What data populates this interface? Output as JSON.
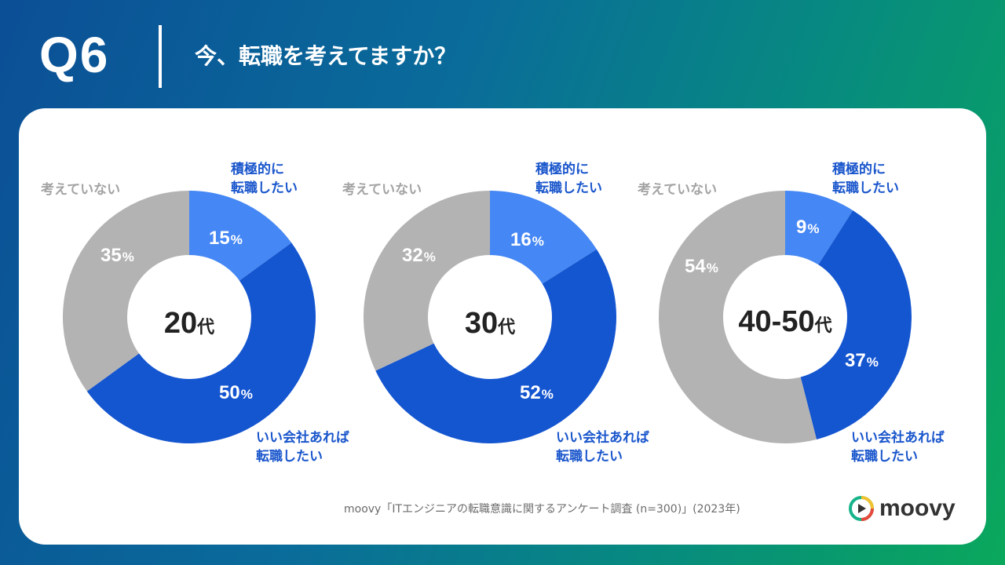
{
  "header": {
    "question_number": "Q6",
    "question_text": "今、転職を考えてますか？"
  },
  "colors": {
    "active": "#4587f4",
    "good_company": "#1455d0",
    "not_considering": "#b3b3b3"
  },
  "legend": {
    "active": [
      "積極的に",
      "転職したい"
    ],
    "good_company": [
      "いい会社あれば",
      "転職したい"
    ],
    "not_considering": [
      "考えていない"
    ]
  },
  "chart_data": [
    {
      "type": "pie",
      "title": "20代",
      "center_value": "20",
      "center_unit": "代",
      "categories": [
        "積極的に転職したい",
        "いい会社あれば転職したい",
        "考えていない"
      ],
      "values": [
        15,
        50,
        35
      ],
      "unit": "%"
    },
    {
      "type": "pie",
      "title": "30代",
      "center_value": "30",
      "center_unit": "代",
      "categories": [
        "積極的に転職したい",
        "いい会社あれば転職したい",
        "考えていない"
      ],
      "values": [
        16,
        52,
        32
      ],
      "unit": "%"
    },
    {
      "type": "pie",
      "title": "40-50代",
      "center_value": "40-50",
      "center_unit": "代",
      "categories": [
        "積極的に転職したい",
        "いい会社あれば転職したい",
        "考えていない"
      ],
      "values": [
        9,
        37,
        54
      ],
      "unit": "%"
    }
  ],
  "source": "moovy「ITエンジニアの転職意識に関するアンケート調査 (n=300)」(2023年)",
  "logo": {
    "text": "moovy"
  }
}
